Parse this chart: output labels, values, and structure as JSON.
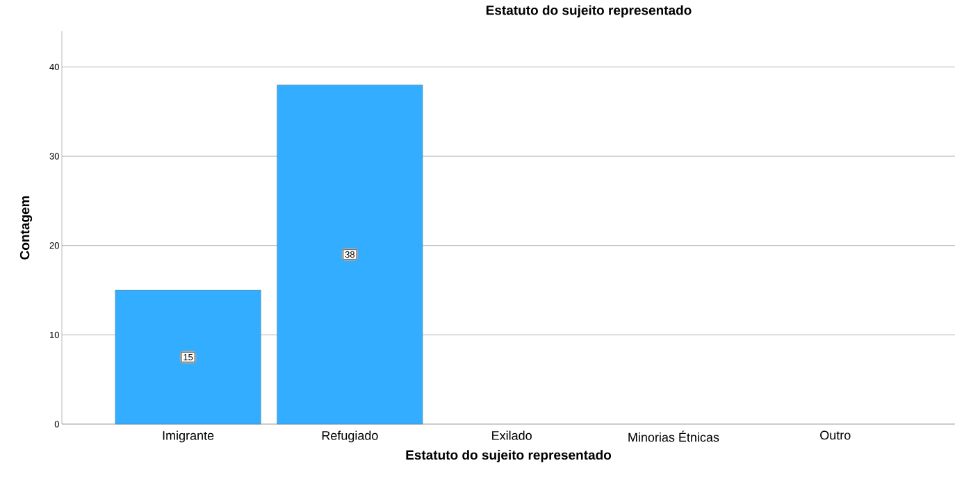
{
  "chart_data": {
    "type": "bar",
    "title": "Estatuto do sujeito representado",
    "xlabel": "Estatuto do sujeito representado",
    "ylabel": "Contagem",
    "categories": [
      "Imigrante",
      "Refugiado",
      "Exilado",
      "Minorias Étnicas",
      "Outro"
    ],
    "values": [
      15,
      38,
      0,
      0,
      0
    ],
    "value_labels": [
      "15",
      "38",
      null,
      null,
      null
    ],
    "color": "#33adff",
    "ylim": [
      0,
      44
    ],
    "yticks": [
      0,
      10,
      20,
      30,
      40
    ],
    "grid": "y"
  }
}
